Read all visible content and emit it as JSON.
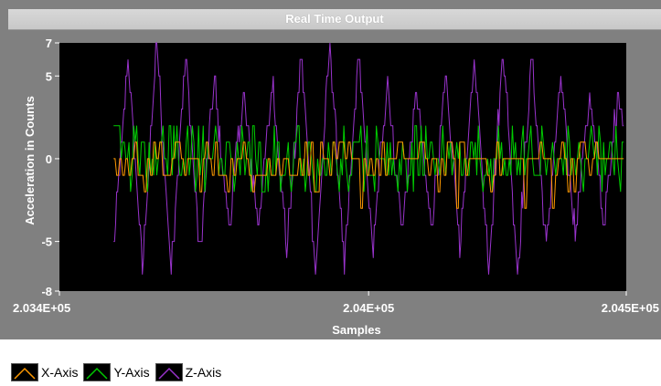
{
  "chart_data": {
    "type": "line",
    "title": "Real Time Output",
    "xlabel": "Samples",
    "ylabel": "Acceleration in Counts",
    "xlim": [
      203400,
      204500
    ],
    "ylim": [
      -8,
      7
    ],
    "x_ticks": [
      {
        "value": 203400,
        "label": "2.034E+05"
      },
      {
        "value": 204000,
        "label": "2.04E+05"
      },
      {
        "value": 204500,
        "label": "2.045E+05"
      }
    ],
    "y_ticks": [
      {
        "value": 7,
        "label": "7"
      },
      {
        "value": 5,
        "label": "5"
      },
      {
        "value": 0,
        "label": "0"
      },
      {
        "value": -5,
        "label": "-5"
      },
      {
        "value": -8,
        "label": "-8"
      }
    ],
    "legend_placement": "bottom-left",
    "series": [
      {
        "name": "X-Axis",
        "color": "#ff9900",
        "x_start": 203505,
        "x_end": 204495,
        "step": 3,
        "description_values": "mostly -1 with frequent jumps to 0 and +1, occasional -2, -3",
        "values_min": -3,
        "values_max": 1
      },
      {
        "name": "Y-Axis",
        "color": "#00cc00",
        "x_start": 203505,
        "x_end": 204495,
        "step": 3,
        "values_min": -2,
        "values_max": 2
      },
      {
        "name": "Z-Axis",
        "color": "#9933cc",
        "x_start": 203505,
        "x_end": 204495,
        "step": 2,
        "waveform": "oscillating triangle-like wave",
        "period_samples": 56,
        "values_min": -8,
        "values_max": 7
      }
    ]
  },
  "legend": {
    "items": [
      {
        "label": "X-Axis",
        "color": "#ff9900"
      },
      {
        "label": "Y-Axis",
        "color": "#00cc00"
      },
      {
        "label": "Z-Axis",
        "color": "#9933cc"
      }
    ]
  }
}
